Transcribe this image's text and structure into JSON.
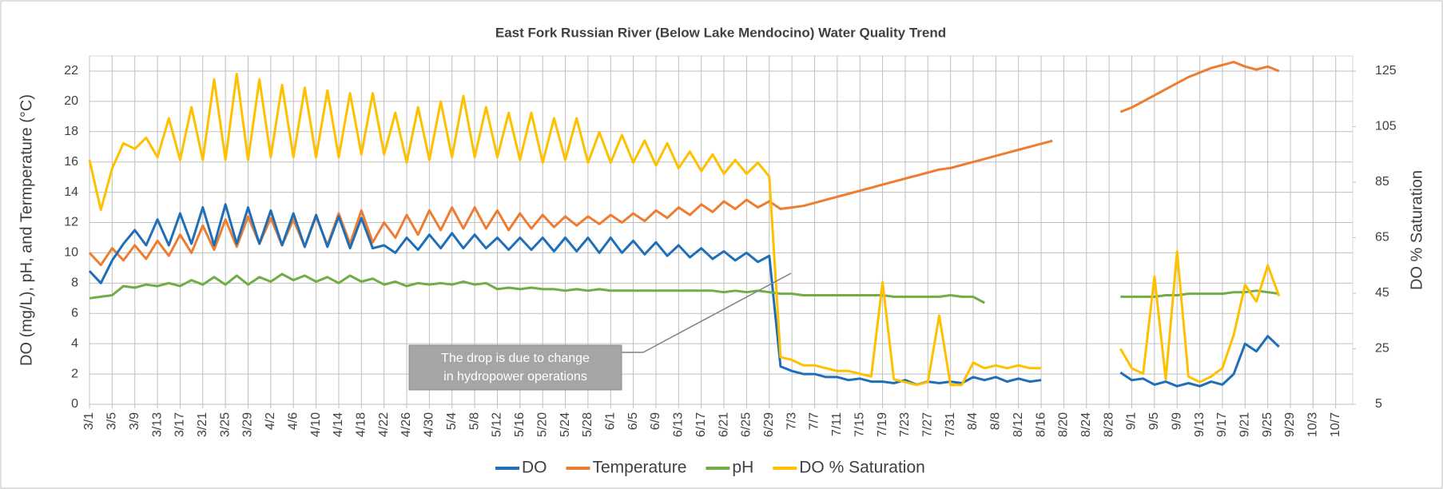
{
  "chart_data": {
    "type": "line",
    "title": "East Fork Russian River (Below Lake Mendocino) Water Quality Trend",
    "y_label": "DO (mg/L), pH, and Termperature (°C)",
    "y2_label": "DO % Saturation",
    "annotation": [
      "The drop is due to change",
      "in hydropower operations"
    ],
    "xlim": [
      0,
      223
    ],
    "xticks": [
      {
        "value": 0,
        "label": "3/1"
      },
      {
        "value": 4,
        "label": "3/5"
      },
      {
        "value": 8,
        "label": "3/9"
      },
      {
        "value": 12,
        "label": "3/13"
      },
      {
        "value": 16,
        "label": "3/17"
      },
      {
        "value": 20,
        "label": "3/21"
      },
      {
        "value": 24,
        "label": "3/25"
      },
      {
        "value": 28,
        "label": "3/29"
      },
      {
        "value": 32,
        "label": "4/2"
      },
      {
        "value": 36,
        "label": "4/6"
      },
      {
        "value": 40,
        "label": "4/10"
      },
      {
        "value": 44,
        "label": "4/14"
      },
      {
        "value": 48,
        "label": "4/18"
      },
      {
        "value": 52,
        "label": "4/22"
      },
      {
        "value": 56,
        "label": "4/26"
      },
      {
        "value": 60,
        "label": "4/30"
      },
      {
        "value": 64,
        "label": "5/4"
      },
      {
        "value": 68,
        "label": "5/8"
      },
      {
        "value": 72,
        "label": "5/12"
      },
      {
        "value": 76,
        "label": "5/16"
      },
      {
        "value": 80,
        "label": "5/20"
      },
      {
        "value": 84,
        "label": "5/24"
      },
      {
        "value": 88,
        "label": "5/28"
      },
      {
        "value": 92,
        "label": "6/1"
      },
      {
        "value": 96,
        "label": "6/5"
      },
      {
        "value": 100,
        "label": "6/9"
      },
      {
        "value": 104,
        "label": "6/13"
      },
      {
        "value": 108,
        "label": "6/17"
      },
      {
        "value": 112,
        "label": "6/21"
      },
      {
        "value": 116,
        "label": "6/25"
      },
      {
        "value": 120,
        "label": "6/29"
      },
      {
        "value": 124,
        "label": "7/3"
      },
      {
        "value": 128,
        "label": "7/7"
      },
      {
        "value": 132,
        "label": "7/11"
      },
      {
        "value": 136,
        "label": "7/15"
      },
      {
        "value": 140,
        "label": "7/19"
      },
      {
        "value": 144,
        "label": "7/23"
      },
      {
        "value": 148,
        "label": "7/27"
      },
      {
        "value": 152,
        "label": "7/31"
      },
      {
        "value": 156,
        "label": "8/4"
      },
      {
        "value": 160,
        "label": "8/8"
      },
      {
        "value": 164,
        "label": "8/12"
      },
      {
        "value": 168,
        "label": "8/16"
      },
      {
        "value": 172,
        "label": "8/20"
      },
      {
        "value": 176,
        "label": "8/24"
      },
      {
        "value": 180,
        "label": "8/28"
      },
      {
        "value": 184,
        "label": "9/1"
      },
      {
        "value": 188,
        "label": "9/5"
      },
      {
        "value": 192,
        "label": "9/9"
      },
      {
        "value": 196,
        "label": "9/13"
      },
      {
        "value": 200,
        "label": "9/17"
      },
      {
        "value": 204,
        "label": "9/21"
      },
      {
        "value": 208,
        "label": "9/25"
      },
      {
        "value": 212,
        "label": "9/29"
      },
      {
        "value": 216,
        "label": "10/3"
      },
      {
        "value": 220,
        "label": "10/7"
      }
    ],
    "ylim": [
      0,
      23
    ],
    "yticks": [
      0,
      2,
      4,
      6,
      8,
      10,
      12,
      14,
      16,
      18,
      20,
      22
    ],
    "y2lim": [
      5,
      130.45
    ],
    "y2ticks": [
      5,
      25,
      45,
      65,
      85,
      105,
      125
    ],
    "grid": true,
    "legend": "bottom",
    "x": [
      0,
      2,
      4,
      6,
      8,
      10,
      12,
      14,
      16,
      18,
      20,
      22,
      24,
      26,
      28,
      30,
      32,
      34,
      36,
      38,
      40,
      42,
      44,
      46,
      48,
      50,
      52,
      54,
      56,
      58,
      60,
      62,
      64,
      66,
      68,
      70,
      72,
      74,
      76,
      78,
      80,
      82,
      84,
      86,
      88,
      90,
      92,
      94,
      96,
      98,
      100,
      102,
      104,
      106,
      108,
      110,
      112,
      114,
      116,
      118,
      120,
      122,
      124,
      126,
      128,
      130,
      132,
      134,
      136,
      138,
      140,
      142,
      144,
      146,
      148,
      150,
      152,
      154,
      156,
      158,
      160,
      162,
      164,
      166,
      168,
      170,
      172,
      174,
      176,
      178,
      180,
      182,
      184,
      186,
      188,
      190,
      192,
      194,
      196,
      198,
      200,
      202,
      204,
      206,
      208,
      210
    ],
    "series": [
      {
        "name": "DO",
        "color": "#1f6fb8",
        "values": [
          8.8,
          8.0,
          9.5,
          10.6,
          11.5,
          10.5,
          12.2,
          10.5,
          12.6,
          10.6,
          13.0,
          10.5,
          13.2,
          10.6,
          13.0,
          10.6,
          12.8,
          10.5,
          12.6,
          10.4,
          12.5,
          10.4,
          12.4,
          10.3,
          12.3,
          10.3,
          10.5,
          10.0,
          11.0,
          10.2,
          11.2,
          10.3,
          11.3,
          10.3,
          11.2,
          10.3,
          11.0,
          10.2,
          11.0,
          10.2,
          11.0,
          10.1,
          11.0,
          10.1,
          11.0,
          10.0,
          11.0,
          10.0,
          10.8,
          9.9,
          10.7,
          9.8,
          10.5,
          9.7,
          10.3,
          9.6,
          10.1,
          9.5,
          10.0,
          9.4,
          9.8,
          2.5,
          2.2,
          2.0,
          2.0,
          1.8,
          1.8,
          1.6,
          1.7,
          1.5,
          1.5,
          1.4,
          1.6,
          1.3,
          1.5,
          1.4,
          1.5,
          1.4,
          1.8,
          1.6,
          1.8,
          1.5,
          1.7,
          1.5,
          1.6,
          null,
          null,
          null,
          null,
          null,
          null,
          2.1,
          1.6,
          1.7,
          1.3,
          1.5,
          1.2,
          1.4,
          1.2,
          1.5,
          1.3,
          2.0,
          4.0,
          3.5,
          4.5,
          3.8
        ]
      },
      {
        "name": "Temperature",
        "color": "#ed7d31",
        "values": [
          10.0,
          9.2,
          10.3,
          9.5,
          10.5,
          9.6,
          10.8,
          9.8,
          11.2,
          10.0,
          11.8,
          10.2,
          12.2,
          10.4,
          12.4,
          10.6,
          12.3,
          10.5,
          12.2,
          10.4,
          12.4,
          10.5,
          12.6,
          10.6,
          12.8,
          10.7,
          12.0,
          11.0,
          12.5,
          11.2,
          12.8,
          11.5,
          13.0,
          11.6,
          13.0,
          11.6,
          12.8,
          11.5,
          12.6,
          11.6,
          12.5,
          11.7,
          12.4,
          11.8,
          12.4,
          11.9,
          12.5,
          12.0,
          12.6,
          12.1,
          12.8,
          12.3,
          13.0,
          12.5,
          13.2,
          12.7,
          13.4,
          12.9,
          13.5,
          13.0,
          13.4,
          12.9,
          13.0,
          13.1,
          13.3,
          13.5,
          13.7,
          13.9,
          14.1,
          14.3,
          14.5,
          14.7,
          14.9,
          15.1,
          15.3,
          15.5,
          15.6,
          15.8,
          16.0,
          16.2,
          16.4,
          16.6,
          16.8,
          17.0,
          17.2,
          17.4,
          null,
          null,
          null,
          null,
          null,
          19.3,
          19.6,
          20.0,
          20.4,
          20.8,
          21.2,
          21.6,
          21.9,
          22.2,
          22.4,
          22.6,
          22.3,
          22.1,
          22.3,
          22.0
        ]
      },
      {
        "name": "pH",
        "color": "#70ad47",
        "values": [
          7.0,
          7.1,
          7.2,
          7.8,
          7.7,
          7.9,
          7.8,
          8.0,
          7.8,
          8.2,
          7.9,
          8.4,
          7.9,
          8.5,
          7.9,
          8.4,
          8.1,
          8.6,
          8.2,
          8.5,
          8.1,
          8.4,
          8.0,
          8.5,
          8.1,
          8.3,
          7.9,
          8.1,
          7.8,
          8.0,
          7.9,
          8.0,
          7.9,
          8.1,
          7.9,
          8.0,
          7.6,
          7.7,
          7.6,
          7.7,
          7.6,
          7.6,
          7.5,
          7.6,
          7.5,
          7.6,
          7.5,
          7.5,
          7.5,
          7.5,
          7.5,
          7.5,
          7.5,
          7.5,
          7.5,
          7.5,
          7.4,
          7.5,
          7.4,
          7.5,
          7.4,
          7.3,
          7.3,
          7.2,
          7.2,
          7.2,
          7.2,
          7.2,
          7.2,
          7.2,
          7.2,
          7.1,
          7.1,
          7.1,
          7.1,
          7.1,
          7.2,
          7.1,
          7.1,
          6.7,
          null,
          null,
          null,
          null,
          null,
          null,
          null,
          null,
          null,
          null,
          null,
          7.1,
          7.1,
          7.1,
          7.1,
          7.2,
          7.2,
          7.3,
          7.3,
          7.3,
          7.3,
          7.4,
          7.4,
          7.5,
          7.4,
          7.3
        ]
      },
      {
        "name": "DO % Saturation",
        "color": "#ffc000",
        "axis": "y2",
        "values": [
          93,
          75,
          90,
          99,
          97,
          101,
          94,
          108,
          93,
          112,
          93,
          122,
          93,
          124,
          93,
          122,
          94,
          120,
          94,
          119,
          94,
          118,
          94,
          117,
          95,
          117,
          95,
          110,
          92,
          112,
          93,
          114,
          94,
          116,
          94,
          112,
          94,
          110,
          93,
          110,
          92,
          108,
          93,
          108,
          92,
          103,
          92,
          102,
          92,
          100,
          91,
          99,
          90,
          96,
          89,
          95,
          88,
          93,
          88,
          92,
          87,
          22,
          21,
          19,
          19,
          18,
          17,
          17,
          16,
          15,
          49,
          14,
          13,
          12,
          13,
          37,
          12,
          12,
          20,
          18,
          19,
          18,
          19,
          18,
          18,
          null,
          null,
          null,
          null,
          null,
          null,
          25,
          18,
          16,
          51,
          14,
          60,
          15,
          13,
          15,
          18,
          30,
          48,
          42,
          55,
          44
        ]
      }
    ]
  }
}
